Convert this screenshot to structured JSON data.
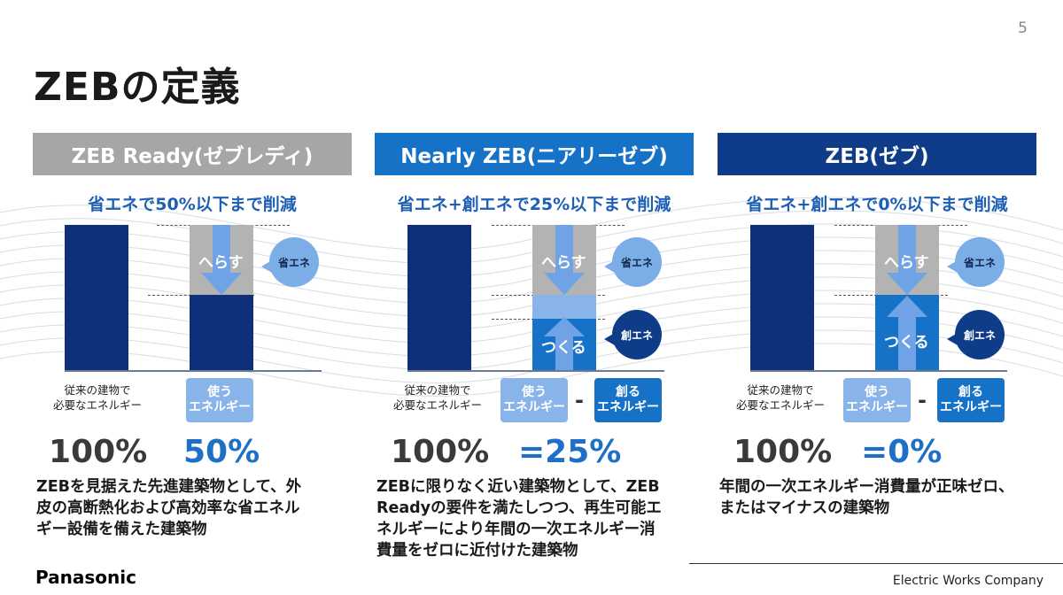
{
  "page_number": "5",
  "title": "ZEBの定義",
  "panels": [
    {
      "header": "ZEB Ready(ゼブレディ)",
      "header_color": "#A6A6A6",
      "subtitle": "省エネで50%以下まで削減",
      "reduce_label": "へらす",
      "save_bubble": "省エネ",
      "conventional_line1": "従来の建物で",
      "conventional_line2": "必要なエネルギー",
      "use_chip_line1": "使う",
      "use_chip_line2": "エネルギー",
      "left_pct": "100%",
      "right_pct": "50%",
      "description": [
        "ZEBを見据えた先進建築物として、外",
        "皮の高断熱化および高効率な省エネル",
        "ギー設備を備えた建築物"
      ]
    },
    {
      "header": "Nearly ZEB(ニアリーゼブ)",
      "header_color": "#1572C6",
      "subtitle": "省エネ+創エネで25%以下まで削減",
      "reduce_label": "へらす",
      "create_label": "つくる",
      "save_bubble": "省エネ",
      "create_bubble": "創エネ",
      "conventional_line1": "従来の建物で",
      "conventional_line2": "必要なエネルギー",
      "use_chip_line1": "使う",
      "use_chip_line2": "エネルギー",
      "minus": "-",
      "create_chip_line1": "創る",
      "create_chip_line2": "エネルギー",
      "left_pct": "100%",
      "right_pct": "=25%",
      "description": [
        "ZEBに限りなく近い建築物として、ZEB",
        "Readyの要件を満たしつつ、再生可能エ",
        "ネルギーにより年間の一次エネルギー消",
        "費量をゼロに近付けた建築物"
      ]
    },
    {
      "header": "ZEB(ゼブ)",
      "header_color": "#0E3C88",
      "subtitle": "省エネ+創エネで0%以下まで削減",
      "reduce_label": "へらす",
      "create_label": "つくる",
      "save_bubble": "省エネ",
      "create_bubble": "創エネ",
      "conventional_line1": "従来の建物で",
      "conventional_line2": "必要なエネルギー",
      "use_chip_line1": "使う",
      "use_chip_line2": "エネルギー",
      "minus": "-",
      "create_chip_line1": "創る",
      "create_chip_line2": "エネルギー",
      "left_pct": "100%",
      "right_pct": "=0%",
      "description": [
        "年間の一次エネルギー消費量が正味ゼロ、",
        "またはマイナスの建築物"
      ]
    }
  ],
  "colors": {
    "navy": "#0E2F7A",
    "gray_bar": "#B3B3B3",
    "light_blue": "#88B4EA",
    "mid_blue": "#1572C6",
    "arrow_blue": "#6FA3E6"
  },
  "footer": {
    "logo": "Panasonic",
    "company": "Electric Works Company"
  }
}
